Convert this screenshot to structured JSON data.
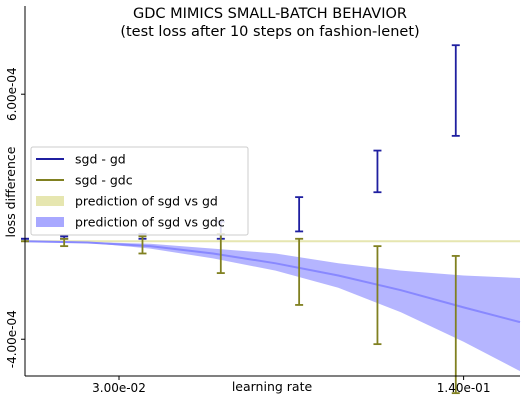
{
  "chart_data": {
    "type": "line",
    "title": "GDC MIMICS SMALL-BATCH BEHAVIOR",
    "subtitle": "(test loss after 10 steps on fashion-lenet)",
    "xlabel": "learning rate",
    "ylabel": "loss difference",
    "xticks": [
      {
        "value": 0.03,
        "label": "3.00e-02"
      },
      {
        "value": 0.14,
        "label": "1.40e-01"
      }
    ],
    "yticks": [
      {
        "value": 0.0006,
        "label": "6.00e-04"
      },
      {
        "value": -0.0004,
        "label": "-4.00e-04"
      }
    ],
    "xlim": [
      0.0,
      0.158
    ],
    "ylim": [
      -0.00055,
      0.00096
    ],
    "grid": false,
    "legend": {
      "placement": "center-left",
      "entries": [
        {
          "label": "sgd - gd",
          "kind": "line",
          "color": "#1f1fa0"
        },
        {
          "label": "sgd - gdc",
          "kind": "line",
          "color": "#808020"
        },
        {
          "label": "prediction of sgd vs gd",
          "kind": "patch",
          "color": "#e6e6b0"
        },
        {
          "label": "prediction of sgd vs gdc",
          "kind": "patch",
          "color": "#a8a8ff"
        }
      ]
    },
    "series": [
      {
        "name": "sgd - gd",
        "kind": "errorbar",
        "color": "#1f1fa0",
        "x": [
          0.0,
          0.0125,
          0.0375,
          0.0625,
          0.0875,
          0.1125,
          0.1375
        ],
        "low": [
          1e-05,
          1e-05,
          1e-05,
          1e-05,
          4e-05,
          0.0002,
          0.00043
        ],
        "high": [
          1e-05,
          2e-05,
          3e-05,
          8e-05,
          0.00018,
          0.00037,
          0.0008
        ]
      },
      {
        "name": "sgd - gdc",
        "kind": "errorbar",
        "color": "#808020",
        "x": [
          0.0,
          0.0125,
          0.0375,
          0.0625,
          0.0875,
          0.1125,
          0.1375
        ],
        "low": [
          0.0,
          -2e-05,
          -5e-05,
          -0.00013,
          -0.00026,
          -0.00042,
          -0.00062
        ],
        "high": [
          0.0,
          1e-05,
          2e-05,
          3e-05,
          1e-05,
          -2e-05,
          -6e-05
        ]
      },
      {
        "name": "prediction of sgd vs gd",
        "kind": "band",
        "color": "#e6e6b0",
        "line_color": "#e6e6b0",
        "x": [
          0.0,
          0.02,
          0.04,
          0.06,
          0.08,
          0.1,
          0.12,
          0.14,
          0.158
        ],
        "mean": [
          0.0,
          0.0,
          0.0,
          0.0,
          0.0,
          0.0,
          0.0,
          0.0,
          0.0
        ],
        "lower": [
          0.0,
          0.0,
          0.0,
          0.0,
          0.0,
          0.0,
          0.0,
          0.0,
          0.0
        ],
        "upper": [
          0.0,
          0.0,
          0.0,
          0.0,
          0.0,
          0.0,
          0.0,
          0.0,
          0.0
        ]
      },
      {
        "name": "prediction of sgd vs gdc",
        "kind": "band",
        "color": "#a8a8ff",
        "line_color": "#8888ff",
        "x": [
          0.0,
          0.02,
          0.04,
          0.06,
          0.08,
          0.1,
          0.12,
          0.14,
          0.158
        ],
        "mean": [
          0.0,
          -5e-06,
          -2e-05,
          -5e-05,
          -9e-05,
          -0.00014,
          -0.0002,
          -0.00027,
          -0.00033
        ],
        "lower": [
          0.0,
          -6e-06,
          -3e-05,
          -7e-05,
          -0.00012,
          -0.00019,
          -0.00029,
          -0.00041,
          -0.00053
        ],
        "upper": [
          0.0,
          -3e-06,
          -1e-05,
          -3e-05,
          -5e-05,
          -9e-05,
          -0.00012,
          -0.00014,
          -0.00015
        ]
      }
    ]
  }
}
